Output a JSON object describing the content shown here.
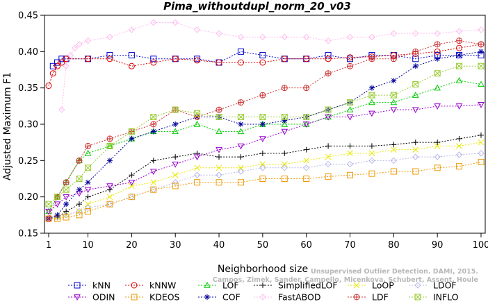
{
  "chart_data": {
    "type": "line",
    "title": "Pima_withoutdupl_norm_20_v03",
    "xlabel": "Neighborhood size",
    "ylabel": "Adjusted Maximum F1",
    "xlim": [
      1,
      100
    ],
    "ylim": [
      0.15,
      0.45
    ],
    "x_ticks": [
      1,
      10,
      20,
      30,
      40,
      50,
      60,
      70,
      80,
      90,
      100
    ],
    "y_ticks": [
      0.15,
      0.2,
      0.25,
      0.3,
      0.35,
      0.4,
      0.45
    ],
    "x_tick_labels": [
      "1",
      "10",
      "20",
      "30",
      "40",
      "50",
      "60",
      "70",
      "80",
      "90",
      "100"
    ],
    "y_tick_labels": [
      "0.15",
      "0.20",
      "0.25",
      "0.30",
      "0.35",
      "0.40",
      "0.45"
    ],
    "grid": false,
    "legend_position": "bottom",
    "watermark": [
      "Campos, Zimek, Sander, Campello, Micenkova, Schubert, Assent, Houle",
      "Unsupervised Outlier Detection. DAMI, 2015."
    ],
    "series": [
      {
        "name": "kNN",
        "color": "#0000cc",
        "marker": "square",
        "x": [
          2,
          3,
          4,
          5,
          10,
          15,
          20,
          25,
          30,
          35,
          40,
          45,
          50,
          55,
          60,
          65,
          70,
          75,
          80,
          85,
          90,
          95,
          100
        ],
        "y": [
          0.38,
          0.385,
          0.39,
          0.39,
          0.39,
          0.395,
          0.395,
          0.39,
          0.39,
          0.39,
          0.385,
          0.4,
          0.395,
          0.39,
          0.39,
          0.395,
          0.39,
          0.395,
          0.395,
          0.39,
          0.395,
          0.395,
          0.395
        ]
      },
      {
        "name": "kNNW",
        "color": "#dd0000",
        "marker": "circle",
        "x": [
          1,
          2,
          3,
          4,
          5,
          10,
          15,
          20,
          25,
          30,
          35,
          40,
          45,
          50,
          55,
          60,
          65,
          70,
          75,
          80,
          85,
          90,
          95,
          100
        ],
        "y": [
          0.353,
          0.37,
          0.38,
          0.385,
          0.39,
          0.39,
          0.39,
          0.38,
          0.385,
          0.39,
          0.388,
          0.385,
          0.385,
          0.385,
          0.39,
          0.39,
          0.39,
          0.392,
          0.393,
          0.395,
          0.397,
          0.4,
          0.405,
          0.41
        ]
      },
      {
        "name": "LOF",
        "color": "#00cc00",
        "marker": "triangle",
        "x": [
          1,
          3,
          5,
          8,
          10,
          15,
          20,
          25,
          30,
          35,
          40,
          45,
          50,
          55,
          60,
          65,
          70,
          75,
          80,
          85,
          90,
          95,
          100
        ],
        "y": [
          0.18,
          0.2,
          0.22,
          0.25,
          0.26,
          0.27,
          0.28,
          0.29,
          0.29,
          0.3,
          0.29,
          0.29,
          0.3,
          0.3,
          0.3,
          0.31,
          0.32,
          0.33,
          0.33,
          0.34,
          0.35,
          0.36,
          0.355
        ]
      },
      {
        "name": "SimplifiedLOF",
        "color": "#000000",
        "marker": "plus",
        "x": [
          1,
          3,
          5,
          8,
          10,
          15,
          20,
          25,
          30,
          35,
          40,
          45,
          50,
          55,
          60,
          65,
          70,
          75,
          80,
          85,
          90,
          95,
          100
        ],
        "y": [
          0.17,
          0.172,
          0.18,
          0.19,
          0.2,
          0.21,
          0.23,
          0.25,
          0.255,
          0.26,
          0.255,
          0.255,
          0.26,
          0.26,
          0.265,
          0.27,
          0.27,
          0.27,
          0.272,
          0.275,
          0.275,
          0.28,
          0.285
        ]
      },
      {
        "name": "LoOP",
        "color": "#e8e800",
        "marker": "x",
        "x": [
          1,
          3,
          5,
          8,
          10,
          15,
          20,
          25,
          30,
          35,
          40,
          45,
          50,
          55,
          60,
          65,
          70,
          75,
          80,
          85,
          90,
          95,
          100
        ],
        "y": [
          0.17,
          0.172,
          0.175,
          0.18,
          0.19,
          0.2,
          0.215,
          0.22,
          0.23,
          0.24,
          0.24,
          0.24,
          0.245,
          0.245,
          0.25,
          0.255,
          0.26,
          0.26,
          0.265,
          0.265,
          0.27,
          0.27,
          0.275
        ]
      },
      {
        "name": "LDOF",
        "color": "#b8b8e8",
        "marker": "diamond",
        "x": [
          1,
          3,
          5,
          8,
          10,
          15,
          20,
          25,
          30,
          35,
          40,
          45,
          50,
          55,
          60,
          65,
          70,
          75,
          80,
          85,
          90,
          95,
          100
        ],
        "y": [
          0.17,
          0.172,
          0.175,
          0.18,
          0.185,
          0.19,
          0.2,
          0.21,
          0.22,
          0.23,
          0.23,
          0.235,
          0.24,
          0.24,
          0.24,
          0.245,
          0.245,
          0.25,
          0.25,
          0.255,
          0.255,
          0.258,
          0.26
        ]
      },
      {
        "name": "ODIN",
        "color": "#9900cc",
        "marker": "triangle-down",
        "x": [
          1,
          3,
          5,
          8,
          10,
          15,
          20,
          25,
          30,
          35,
          40,
          45,
          50,
          55,
          60,
          65,
          70,
          75,
          80,
          85,
          90,
          95,
          100
        ],
        "y": [
          0.18,
          0.19,
          0.2,
          0.205,
          0.21,
          0.215,
          0.22,
          0.235,
          0.245,
          0.255,
          0.265,
          0.27,
          0.28,
          0.29,
          0.3,
          0.31,
          0.31,
          0.315,
          0.32,
          0.32,
          0.325,
          0.325,
          0.327
        ]
      },
      {
        "name": "KDEOS",
        "color": "#ee9900",
        "marker": "square",
        "x": [
          1,
          3,
          5,
          8,
          10,
          15,
          20,
          25,
          30,
          35,
          40,
          45,
          50,
          55,
          60,
          65,
          70,
          75,
          80,
          85,
          90,
          95,
          100
        ],
        "y": [
          0.17,
          0.17,
          0.172,
          0.175,
          0.18,
          0.19,
          0.2,
          0.21,
          0.215,
          0.22,
          0.22,
          0.22,
          0.225,
          0.225,
          0.225,
          0.228,
          0.23,
          0.232,
          0.235,
          0.235,
          0.24,
          0.242,
          0.248
        ]
      },
      {
        "name": "COF",
        "color": "#000099",
        "marker": "star",
        "x": [
          1,
          3,
          5,
          8,
          10,
          15,
          20,
          25,
          30,
          35,
          40,
          45,
          50,
          55,
          60,
          65,
          70,
          75,
          80,
          85,
          90,
          95,
          100
        ],
        "y": [
          0.17,
          0.175,
          0.19,
          0.21,
          0.22,
          0.25,
          0.28,
          0.29,
          0.3,
          0.31,
          0.31,
          0.3,
          0.3,
          0.305,
          0.31,
          0.32,
          0.33,
          0.35,
          0.36,
          0.38,
          0.39,
          0.395,
          0.4
        ]
      },
      {
        "name": "FastABOD",
        "color": "#ffbbee",
        "marker": "diamond",
        "x": [
          4,
          5,
          6,
          7,
          8,
          10,
          15,
          20,
          25,
          30,
          35,
          40,
          45,
          50,
          55,
          60,
          65,
          70,
          75,
          80,
          85,
          90,
          95,
          100
        ],
        "y": [
          0.32,
          0.38,
          0.395,
          0.405,
          0.41,
          0.415,
          0.42,
          0.43,
          0.44,
          0.44,
          0.43,
          0.425,
          0.42,
          0.42,
          0.42,
          0.42,
          0.415,
          0.42,
          0.42,
          0.425,
          0.425,
          0.425,
          0.428,
          0.43
        ]
      },
      {
        "name": "LDF",
        "color": "#cc3333",
        "marker": "circle-plus",
        "x": [
          1,
          3,
          5,
          8,
          10,
          15,
          20,
          25,
          30,
          35,
          40,
          45,
          50,
          55,
          60,
          65,
          70,
          75,
          80,
          85,
          90,
          95,
          100
        ],
        "y": [
          0.17,
          0.2,
          0.22,
          0.25,
          0.27,
          0.28,
          0.29,
          0.3,
          0.32,
          0.31,
          0.32,
          0.33,
          0.34,
          0.35,
          0.35,
          0.37,
          0.38,
          0.39,
          0.39,
          0.4,
          0.41,
          0.415,
          0.41
        ]
      },
      {
        "name": "INFLO",
        "color": "#99cc33",
        "marker": "star-square",
        "x": [
          1,
          3,
          5,
          8,
          10,
          15,
          20,
          25,
          30,
          35,
          40,
          45,
          50,
          55,
          60,
          65,
          70,
          75,
          80,
          85,
          90,
          95,
          100
        ],
        "y": [
          0.19,
          0.2,
          0.21,
          0.225,
          0.24,
          0.27,
          0.29,
          0.31,
          0.32,
          0.315,
          0.31,
          0.31,
          0.31,
          0.31,
          0.31,
          0.32,
          0.33,
          0.34,
          0.34,
          0.355,
          0.37,
          0.38,
          0.38
        ]
      }
    ],
    "legend_rows": [
      [
        "kNN",
        "kNNW",
        "LOF",
        "SimplifiedLOF",
        "LoOP",
        "LDOF"
      ],
      [
        "ODIN",
        "KDEOS",
        "COF",
        "FastABOD",
        "LDF",
        "INFLO"
      ]
    ]
  }
}
